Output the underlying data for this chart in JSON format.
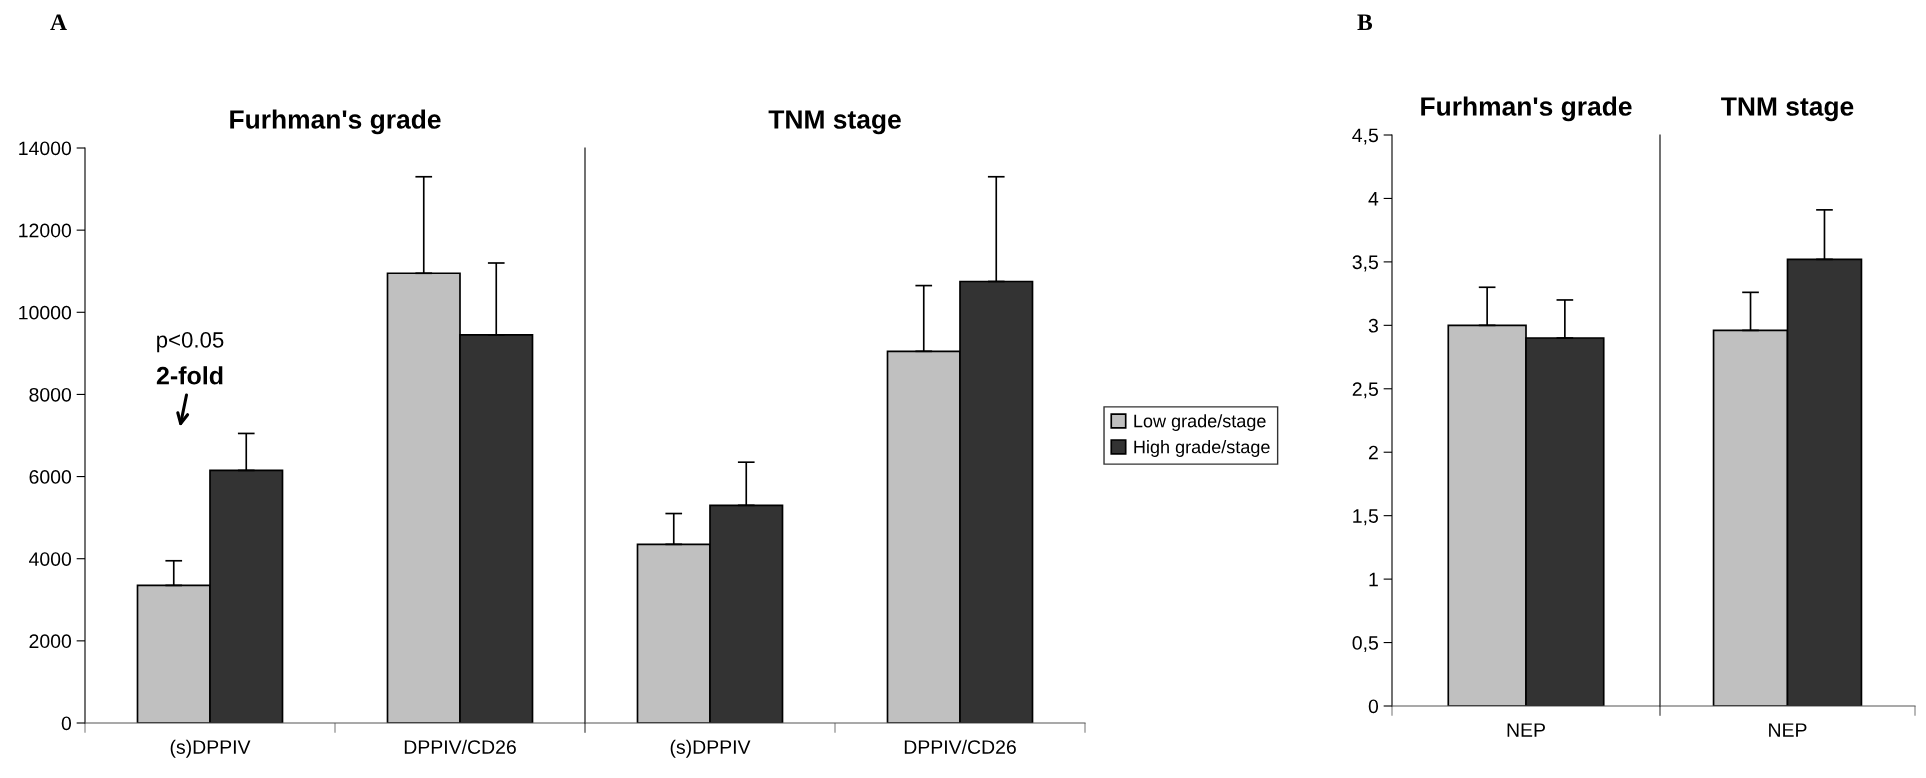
{
  "chart_data": [
    {
      "type": "bar",
      "title": "Furhman's grade",
      "categories": [
        "(s)DPPIV",
        "DPPIV/CD26"
      ],
      "series": [
        {
          "color": "#c0c0c0",
          "values": [
            3350,
            10950
          ],
          "errors": [
            [
              3350,
              3950
            ],
            [
              10950,
              13300
            ]
          ]
        },
        {
          "color": "#333333",
          "values": [
            6150,
            9450
          ],
          "errors": [
            [
              6150,
              7050
            ],
            [
              9450,
              11200
            ]
          ]
        }
      ],
      "ylim": [
        0,
        14000
      ],
      "yticks": [
        0,
        2000,
        4000,
        6000,
        8000,
        10000,
        12000,
        14000
      ],
      "annotations": [
        "A",
        "p<0.05",
        "2-fold"
      ]
    },
    {
      "type": "bar",
      "title": "TNM stage",
      "categories": [
        "(s)DPPIV",
        "DPPIV/CD26"
      ],
      "series": [
        {
          "name": "Low grade/stage",
          "color": "#c0c0c0",
          "values": [
            4350,
            9050
          ],
          "errors": [
            [
              4350,
              5100
            ],
            [
              9050,
              10650
            ]
          ]
        },
        {
          "name": "High grade/stage",
          "color": "#333333",
          "values": [
            5300,
            10750
          ],
          "errors": [
            [
              5300,
              6350
            ],
            [
              10750,
              13300
            ]
          ]
        }
      ],
      "ylim": [
        0,
        14000
      ],
      "tick_labels": "x",
      "legend": "right"
    },
    {
      "type": "bar",
      "title": "Furhman's grade",
      "categories": [
        "NEP"
      ],
      "series": [
        {
          "color": "#c0c0c0",
          "values": [
            3.0
          ],
          "errors": [
            [
              3.0,
              3.3
            ]
          ]
        },
        {
          "color": "#333333",
          "values": [
            2.9
          ],
          "errors": [
            [
              2.9,
              3.2
            ]
          ]
        }
      ],
      "ylim": [
        0,
        4.5
      ],
      "yticks": [
        0,
        {
          "value": 0.5,
          "label": "0,5"
        },
        1,
        {
          "value": 1.5,
          "label": "1,5"
        },
        2,
        {
          "value": 2.5,
          "label": "2,5"
        },
        3,
        {
          "value": 3.5,
          "label": "3,5"
        },
        4,
        {
          "value": 4.5,
          "label": "4,5"
        }
      ],
      "annotations": [
        "B"
      ]
    },
    {
      "type": "bar",
      "title": "TNM stage",
      "categories": [
        "NEP"
      ],
      "series": [
        {
          "color": "#c0c0c0",
          "values": [
            2.96
          ],
          "errors": [
            [
              2.96,
              3.26
            ]
          ]
        },
        {
          "color": "#333333",
          "values": [
            3.52
          ],
          "errors": [
            [
              3.52,
              3.91
            ]
          ]
        }
      ],
      "ylim": [
        0,
        4.5
      ],
      "tick_labels": "x"
    }
  ]
}
